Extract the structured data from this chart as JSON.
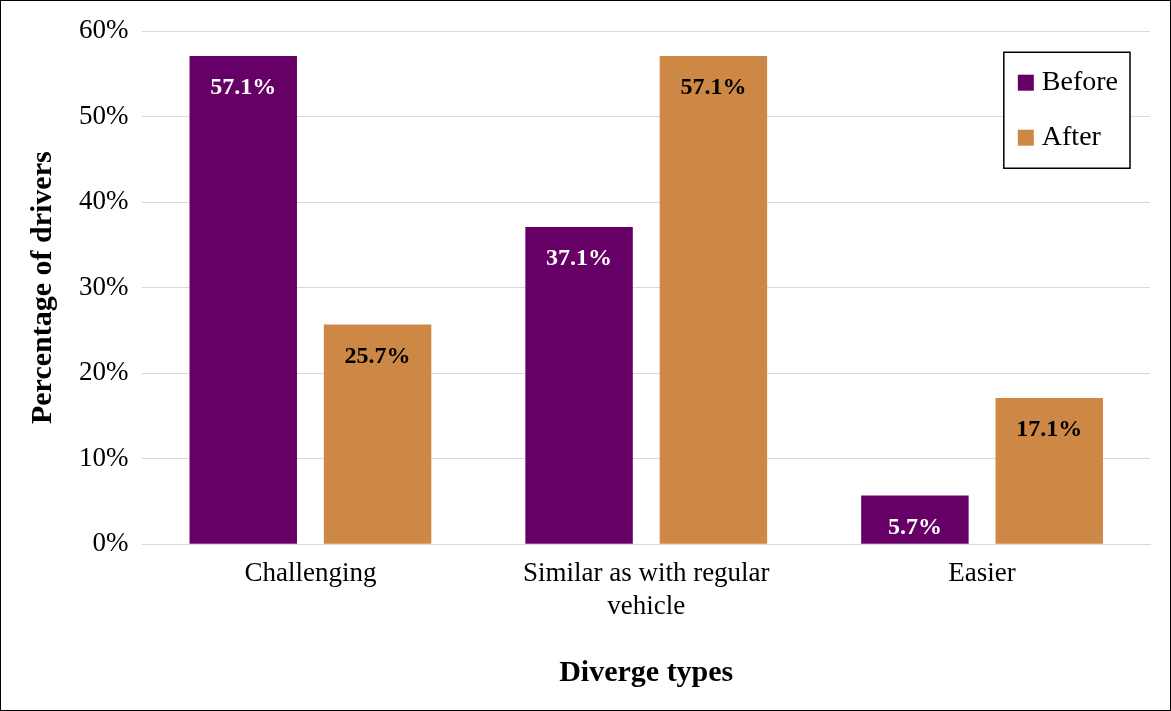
{
  "chart_data": {
    "type": "bar",
    "xlabel": "Diverge types",
    "ylabel": "Percentage of drivers",
    "categories": [
      "Challenging",
      "Similar as with regular vehicle",
      "Easier"
    ],
    "series": [
      {
        "name": "Before",
        "color": "#660066",
        "values": [
          57.1,
          37.1,
          5.7
        ],
        "value_labels": [
          "57.1%",
          "37.1%",
          "5.7%"
        ]
      },
      {
        "name": "After",
        "color": "#cc8844",
        "values": [
          25.7,
          57.1,
          17.1
        ],
        "value_labels": [
          "25.7%",
          "57.1%",
          "17.1%"
        ]
      }
    ],
    "ylim": [
      0,
      60
    ],
    "yticks": [
      {
        "value": 0,
        "label": "0%"
      },
      {
        "value": 10,
        "label": "10%"
      },
      {
        "value": 20,
        "label": "20%"
      },
      {
        "value": 30,
        "label": "30%"
      },
      {
        "value": 40,
        "label": "40%"
      },
      {
        "value": 50,
        "label": "50%"
      },
      {
        "value": 60,
        "label": "60%"
      }
    ],
    "grid": "y",
    "legend": "top right"
  }
}
